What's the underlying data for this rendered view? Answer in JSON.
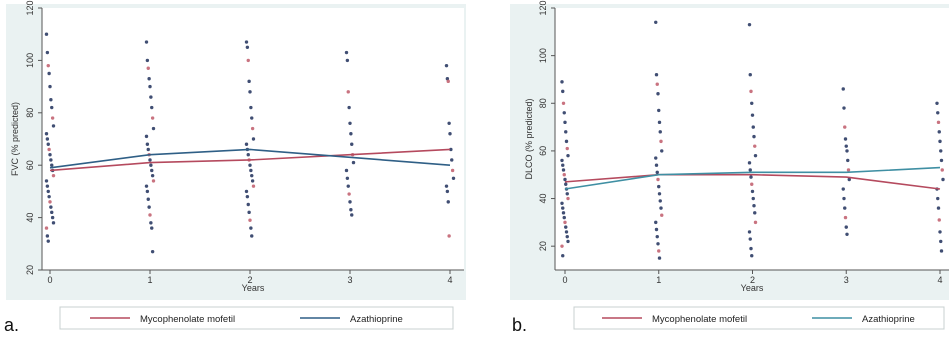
{
  "colors": {
    "mycophenolate": "#b54a5e",
    "azathioprine_a": "#2f5f86",
    "azathioprine_b": "#3f8fa3",
    "dot_dark": "#1f2f5a",
    "dot_red": "#c05a6a",
    "panel_bg": "#eaf2f2",
    "frame": "#c8d0d0"
  },
  "chart_data": [
    {
      "type": "scatter",
      "panel_label": "a.",
      "xlabel": "Years",
      "ylabel": "FVC (% predicted)",
      "xlim": [
        0,
        4
      ],
      "ylim": [
        20,
        120
      ],
      "x_ticks": [
        0,
        1,
        2,
        3,
        4
      ],
      "y_ticks": [
        20,
        40,
        60,
        80,
        100,
        120
      ],
      "grid": false,
      "legend_position": "bottom",
      "series": [
        {
          "name": "Mycophenolate mofetil",
          "kind": "line",
          "x": [
            0,
            1,
            2,
            3,
            4
          ],
          "y": [
            58,
            61,
            62,
            64,
            66
          ]
        },
        {
          "name": "Azathioprine",
          "kind": "line",
          "x": [
            0,
            1,
            2,
            3,
            4
          ],
          "y": [
            59,
            64,
            66,
            63,
            60
          ]
        }
      ],
      "points": [
        {
          "x": 0,
          "y": [
            110,
            103,
            98,
            95,
            90,
            85,
            82,
            78,
            75,
            72,
            70,
            68,
            66,
            64,
            62,
            60,
            58,
            56,
            54,
            52,
            50,
            48,
            46,
            44,
            42,
            40,
            38,
            36,
            33,
            31
          ]
        },
        {
          "x": 1,
          "y": [
            107,
            100,
            97,
            93,
            90,
            86,
            82,
            78,
            74,
            71,
            68,
            66,
            64,
            62,
            60,
            58,
            56,
            54,
            52,
            50,
            47,
            44,
            41,
            38,
            36,
            27
          ]
        },
        {
          "x": 2,
          "y": [
            107,
            105,
            100,
            92,
            88,
            82,
            78,
            74,
            70,
            68,
            66,
            64,
            62,
            60,
            58,
            56,
            54,
            52,
            50,
            48,
            45,
            42,
            39,
            36,
            33
          ]
        },
        {
          "x": 3,
          "y": [
            103,
            100,
            88,
            82,
            76,
            72,
            68,
            64,
            61,
            58,
            55,
            52,
            49,
            46,
            43,
            41
          ]
        },
        {
          "x": 4,
          "y": [
            98,
            93,
            92,
            76,
            72,
            66,
            62,
            58,
            55,
            52,
            50,
            46,
            33
          ]
        }
      ]
    },
    {
      "type": "scatter",
      "panel_label": "b.",
      "xlabel": "Years",
      "ylabel": "DLCO (% predicted)",
      "xlim": [
        0,
        4
      ],
      "ylim": [
        10,
        120
      ],
      "x_ticks": [
        0,
        1,
        2,
        3,
        4
      ],
      "y_ticks": [
        20,
        40,
        60,
        80,
        100,
        120
      ],
      "grid": false,
      "legend_position": "bottom",
      "series": [
        {
          "name": "Mycophenolate mofetil",
          "kind": "line",
          "x": [
            0,
            1,
            2,
            3,
            4
          ],
          "y": [
            47,
            50,
            50,
            49,
            44
          ]
        },
        {
          "name": "Azathioprine",
          "kind": "line",
          "x": [
            0,
            1,
            2,
            3,
            4
          ],
          "y": [
            44,
            50,
            51,
            51,
            53
          ]
        }
      ],
      "points": [
        {
          "x": 0,
          "y": [
            89,
            85,
            80,
            76,
            72,
            68,
            64,
            61,
            58,
            56,
            54,
            52,
            50,
            48,
            46,
            44,
            42,
            40,
            38,
            36,
            34,
            32,
            30,
            28,
            26,
            24,
            22,
            20,
            16
          ]
        },
        {
          "x": 1,
          "y": [
            114,
            92,
            88,
            84,
            77,
            72,
            68,
            64,
            60,
            57,
            54,
            51,
            48,
            45,
            42,
            39,
            36,
            33,
            30,
            27,
            24,
            21,
            18,
            15
          ]
        },
        {
          "x": 2,
          "y": [
            113,
            92,
            85,
            80,
            75,
            70,
            66,
            62,
            58,
            55,
            52,
            49,
            46,
            43,
            40,
            37,
            34,
            30,
            26,
            23,
            19,
            16
          ]
        },
        {
          "x": 3,
          "y": [
            86,
            78,
            70,
            65,
            62,
            60,
            56,
            52,
            48,
            44,
            40,
            36,
            32,
            28,
            25
          ]
        },
        {
          "x": 4,
          "y": [
            80,
            76,
            72,
            68,
            64,
            60,
            56,
            52,
            48,
            44,
            40,
            36,
            31,
            26,
            22,
            18
          ]
        }
      ]
    }
  ]
}
